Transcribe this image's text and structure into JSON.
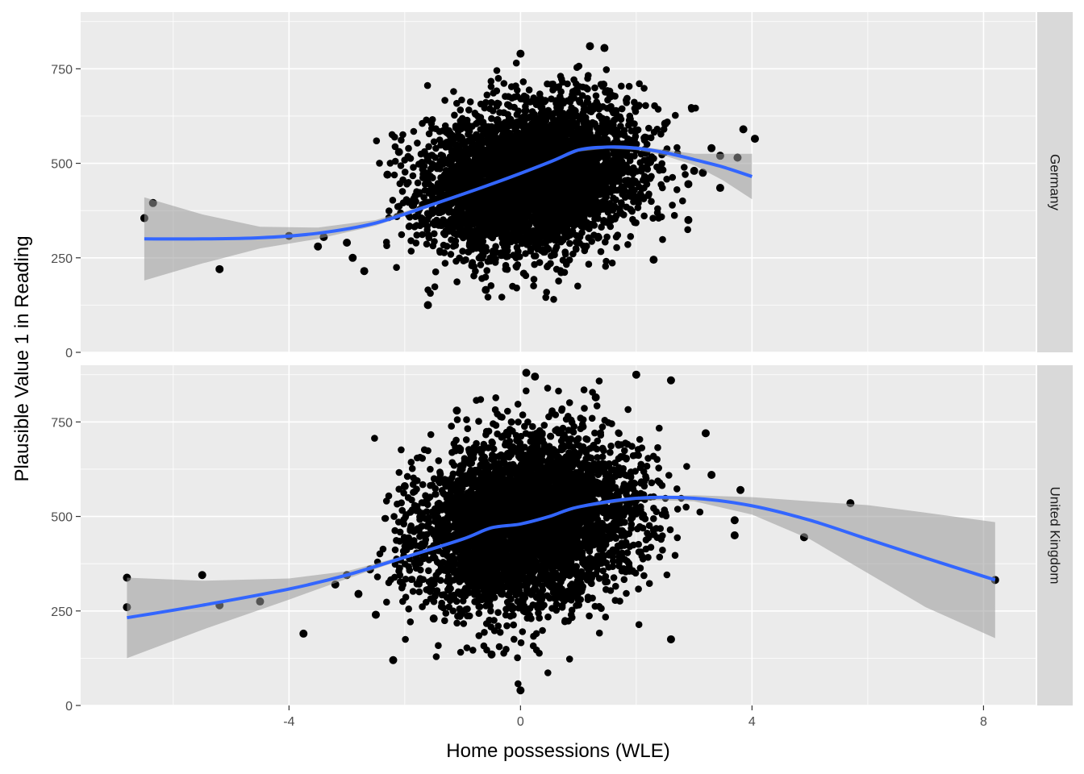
{
  "chart_data": {
    "type": "scatter",
    "xlabel": "Home possessions (WLE)",
    "ylabel": "Plausible Value 1 in Reading",
    "xlim": [
      -7.6,
      8.9
    ],
    "ylim": [
      0,
      900
    ],
    "x_ticks": [
      -4,
      0,
      4,
      8
    ],
    "x_tick_labels": [
      "-4",
      "0",
      "4",
      "8"
    ],
    "y_ticks": [
      0,
      250,
      500,
      750
    ],
    "y_tick_labels": [
      "0",
      "250",
      "500",
      "750"
    ],
    "grid": true,
    "legend": "none",
    "colors": {
      "panel_bg": "#ebebeb",
      "grid": "#ffffff",
      "strip_bg": "#d9d9d9",
      "points": "#000000",
      "smooth_line": "#3366ff",
      "confidence_band": "#999999"
    },
    "panels": [
      {
        "facet": "Germany",
        "cloud": {
          "x_center": 0.2,
          "x_sd": 0.9,
          "y_center": 460,
          "y_sd": 95,
          "y_min": 125,
          "y_max": 810,
          "x_range": [
            -2.5,
            3.2
          ]
        },
        "outliers": [
          {
            "x": -6.5,
            "y": 355
          },
          {
            "x": -6.35,
            "y": 395
          },
          {
            "x": -5.2,
            "y": 220
          },
          {
            "x": -4.0,
            "y": 308
          },
          {
            "x": -3.5,
            "y": 280
          },
          {
            "x": -3.4,
            "y": 305
          },
          {
            "x": -3.0,
            "y": 290
          },
          {
            "x": -2.9,
            "y": 250
          },
          {
            "x": -2.7,
            "y": 215
          },
          {
            "x": -2.3,
            "y": 470
          },
          {
            "x": -2.1,
            "y": 530
          },
          {
            "x": -1.6,
            "y": 125
          },
          {
            "x": -0.6,
            "y": 165
          },
          {
            "x": 0.0,
            "y": 790
          },
          {
            "x": 1.2,
            "y": 810
          },
          {
            "x": 1.45,
            "y": 805
          },
          {
            "x": 2.3,
            "y": 245
          },
          {
            "x": 2.5,
            "y": 605
          },
          {
            "x": 2.9,
            "y": 350
          },
          {
            "x": 2.9,
            "y": 445
          },
          {
            "x": 3.0,
            "y": 480
          },
          {
            "x": 3.15,
            "y": 475
          },
          {
            "x": 3.3,
            "y": 540
          },
          {
            "x": 3.45,
            "y": 520
          },
          {
            "x": 3.45,
            "y": 435
          },
          {
            "x": 3.75,
            "y": 515
          },
          {
            "x": 3.85,
            "y": 590
          },
          {
            "x": 4.05,
            "y": 565
          }
        ],
        "smooth": {
          "x": [
            -6.5,
            -5.5,
            -4.5,
            -3.5,
            -2.5,
            -1.5,
            -0.5,
            0.5,
            1.0,
            1.5,
            2.0,
            2.5,
            3.0,
            3.5,
            4.0
          ],
          "y": [
            300,
            300,
            303,
            315,
            342,
            392,
            445,
            503,
            535,
            543,
            540,
            528,
            510,
            490,
            465
          ],
          "ymin": [
            190,
            235,
            275,
            300,
            335,
            388,
            442,
            499,
            531,
            539,
            535,
            520,
            495,
            455,
            405
          ],
          "ymax": [
            410,
            365,
            332,
            330,
            350,
            396,
            448,
            507,
            539,
            547,
            545,
            536,
            525,
            525,
            525
          ]
        }
      },
      {
        "facet": "United Kingdom",
        "cloud": {
          "x_center": 0.1,
          "x_sd": 0.95,
          "y_center": 480,
          "y_sd": 110,
          "y_min": 40,
          "y_max": 880,
          "x_range": [
            -2.6,
            3.3
          ]
        },
        "outliers": [
          {
            "x": -6.8,
            "y": 338
          },
          {
            "x": -6.8,
            "y": 260
          },
          {
            "x": -5.5,
            "y": 345
          },
          {
            "x": -5.2,
            "y": 265
          },
          {
            "x": -4.5,
            "y": 275
          },
          {
            "x": -3.75,
            "y": 190
          },
          {
            "x": -3.2,
            "y": 320
          },
          {
            "x": -3.0,
            "y": 345
          },
          {
            "x": -2.8,
            "y": 295
          },
          {
            "x": -2.6,
            "y": 360
          },
          {
            "x": -2.5,
            "y": 240
          },
          {
            "x": -2.2,
            "y": 120
          },
          {
            "x": -2.0,
            "y": 580
          },
          {
            "x": -1.5,
            "y": 230
          },
          {
            "x": -1.1,
            "y": 780
          },
          {
            "x": -0.5,
            "y": 135
          },
          {
            "x": 0.0,
            "y": 40
          },
          {
            "x": 0.1,
            "y": 880
          },
          {
            "x": 0.25,
            "y": 870
          },
          {
            "x": 1.3,
            "y": 815
          },
          {
            "x": 2.0,
            "y": 875
          },
          {
            "x": 2.6,
            "y": 860
          },
          {
            "x": 2.6,
            "y": 175
          },
          {
            "x": 3.2,
            "y": 720
          },
          {
            "x": 3.3,
            "y": 610
          },
          {
            "x": 3.8,
            "y": 570
          },
          {
            "x": 3.7,
            "y": 490
          },
          {
            "x": 3.7,
            "y": 450
          },
          {
            "x": 4.9,
            "y": 445
          },
          {
            "x": 5.7,
            "y": 535
          },
          {
            "x": 8.2,
            "y": 332
          }
        ],
        "smooth": {
          "x": [
            -6.8,
            -5.5,
            -4.0,
            -3.0,
            -2.0,
            -1.0,
            -0.5,
            0.0,
            0.5,
            1.0,
            2.0,
            3.0,
            4.0,
            5.0,
            6.0,
            7.0,
            8.2
          ],
          "y": [
            232,
            265,
            308,
            345,
            392,
            440,
            470,
            480,
            500,
            525,
            548,
            548,
            528,
            490,
            440,
            390,
            332
          ],
          "ymin": [
            125,
            200,
            280,
            335,
            388,
            437,
            467,
            477,
            497,
            522,
            544,
            540,
            505,
            440,
            350,
            260,
            178
          ],
          "ymax": [
            338,
            330,
            336,
            355,
            396,
            443,
            473,
            483,
            503,
            528,
            552,
            556,
            551,
            540,
            530,
            510,
            485
          ]
        }
      }
    ]
  }
}
